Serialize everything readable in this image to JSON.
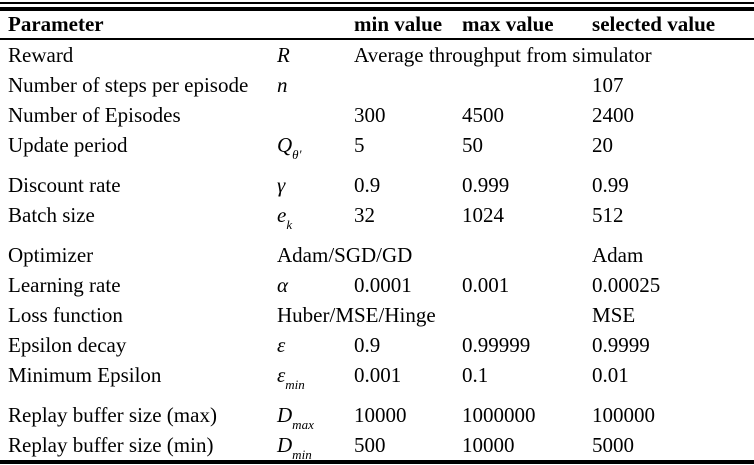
{
  "table": {
    "headers": {
      "parameter": "Parameter",
      "min": "min value",
      "max": "max value",
      "selected": "selected value"
    },
    "rows": [
      {
        "param": "Reward",
        "symbol_base": "R",
        "symbol_sub": "",
        "span_text": "Average throughput from simulator",
        "gap_after": false
      },
      {
        "param": "Number of steps per episode",
        "symbol_base": "n",
        "symbol_sub": "",
        "min": "",
        "max": "",
        "selected": "107",
        "gap_after": false
      },
      {
        "param": "Number of Episodes",
        "symbol_base": "",
        "symbol_sub": "",
        "min": "300",
        "max": "4500",
        "selected": "2400",
        "gap_after": false
      },
      {
        "param": "Update period",
        "symbol_base": "Q",
        "symbol_sub": "θ'",
        "min": "5",
        "max": "50",
        "selected": "20",
        "gap_after": true
      },
      {
        "param": "Discount rate",
        "symbol_base": "γ",
        "symbol_sub": "",
        "min": "0.9",
        "max": "0.999",
        "selected": "0.99",
        "gap_after": false
      },
      {
        "param": "Batch size",
        "symbol_base": "e",
        "symbol_sub": "k",
        "min": "32",
        "max": "1024",
        "selected": "512",
        "gap_after": true
      },
      {
        "param": "Optimizer",
        "options_text": "Adam/SGD/GD",
        "selected": "Adam",
        "gap_after": false
      },
      {
        "param": "Learning rate",
        "symbol_base": "α",
        "symbol_sub": "",
        "min": "0.0001",
        "max": "0.001",
        "selected": "0.00025",
        "gap_after": false
      },
      {
        "param": "Loss function",
        "options_text": "Huber/MSE/Hinge",
        "selected": "MSE",
        "gap_after": false
      },
      {
        "param": "Epsilon decay",
        "symbol_base": "ε",
        "symbol_sub": "",
        "min": "0.9",
        "max": "0.99999",
        "selected": "0.9999",
        "gap_after": false
      },
      {
        "param": "Minimum Epsilon",
        "symbol_base": "ε",
        "symbol_sub": "min",
        "min": "0.001",
        "max": "0.1",
        "selected": "0.01",
        "gap_after": true
      },
      {
        "param": "Replay buffer size (max)",
        "symbol_base": "D",
        "symbol_sub": "max",
        "min": "10000",
        "max": "1000000",
        "selected": "100000",
        "gap_after": false
      },
      {
        "param": "Replay buffer size (min)",
        "symbol_base": "D",
        "symbol_sub": "min",
        "min": "500",
        "max": "10000",
        "selected": "5000",
        "gap_after": false
      }
    ]
  }
}
